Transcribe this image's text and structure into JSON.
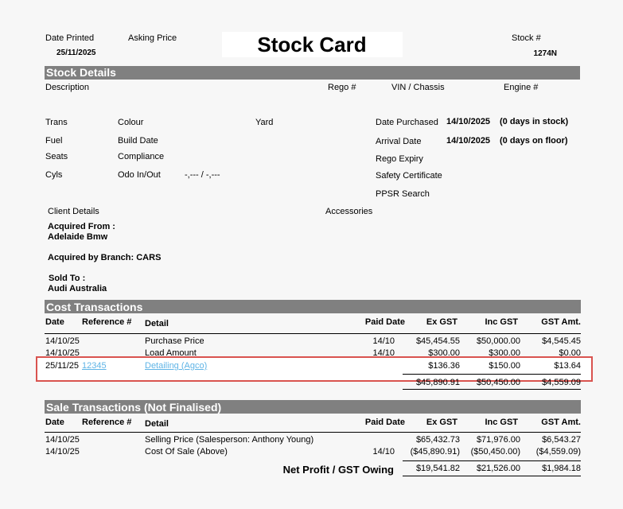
{
  "header": {
    "date_printed_label": "Date Printed",
    "date_printed": "25/11/2025",
    "asking_price_label": "Asking Price",
    "title": "Stock Card",
    "stock_no_label": "Stock #",
    "stock_no": "1274N"
  },
  "stock_details": {
    "heading": "Stock Details",
    "description": "Description",
    "rego": "Rego #",
    "vin": "VIN / Chassis",
    "engine": "Engine #",
    "trans": "Trans",
    "colour": "Colour",
    "yard": "Yard",
    "date_purchased_label": "Date Purchased",
    "date_purchased": "14/10/2025",
    "days_in_stock": "(0 days in stock)",
    "fuel": "Fuel",
    "build_date": "Build Date",
    "arrival_date_label": "Arrival Date",
    "arrival_date": "14/10/2025",
    "days_on_floor": "(0 days on floor)",
    "seats": "Seats",
    "compliance": "Compliance",
    "rego_expiry": "Rego Expiry",
    "cyls": "Cyls",
    "odo": "Odo In/Out",
    "odo_value": "-,--- / -,---",
    "safety": "Safety Certificate",
    "ppsr": "PPSR Search",
    "client_details": "Client Details",
    "accessories": "Accessories",
    "acquired_from_label": "Acquired From :",
    "acquired_from": "Adelaide Bmw",
    "acquired_branch": "Acquired by Branch: CARS",
    "sold_to_label": "Sold To :",
    "sold_to": "Audi Australia"
  },
  "cost_transactions": {
    "heading": "Cost Transactions",
    "columns": [
      "Date",
      "Reference #",
      "Detail",
      "Paid Date",
      "Ex GST",
      "Inc GST",
      "GST Amt."
    ],
    "rows": [
      {
        "date": "14/10/25",
        "detail": "Purchase Price",
        "paid_date": "14/10",
        "ex_gst": "$45,454.55",
        "inc_gst": "$50,000.00",
        "gst_amt": "$4,545.45"
      },
      {
        "date": "14/10/25",
        "detail": "Load Amount",
        "paid_date": "14/10",
        "ex_gst": "$300.00",
        "inc_gst": "$300.00",
        "gst_amt": "$0.00"
      },
      {
        "date": "25/11/25",
        "reference": "12345",
        "detail": "Detailing (Agco)",
        "ex_gst": "$136.36",
        "inc_gst": "$150.00",
        "gst_amt": "$13.64"
      }
    ],
    "totals": {
      "ex_gst": "$45,890.91",
      "inc_gst": "$50,450.00",
      "gst_amt": "$4,559.09"
    }
  },
  "sale_transactions": {
    "heading": "Sale Transactions (Not Finalised)",
    "columns": [
      "Date",
      "Reference #",
      "Detail",
      "Paid Date",
      "Ex GST",
      "Inc GST",
      "GST Amt."
    ],
    "rows": [
      {
        "date": "14/10/25",
        "detail": "Selling Price (Salesperson: Anthony Young)",
        "ex_gst": "$65,432.73",
        "inc_gst": "$71,976.00",
        "gst_amt": "$6,543.27"
      },
      {
        "date": "14/10/25",
        "detail": "Cost Of Sale (Above)",
        "paid_date": "14/10",
        "ex_gst": "($45,890.91)",
        "inc_gst": "($50,450.00)",
        "gst_amt": "($4,559.09)"
      }
    ],
    "totals_label": "Net Profit / GST Owing",
    "totals": {
      "ex_gst": "$19,541.82",
      "inc_gst": "$21,526.00",
      "gst_amt": "$1,984.18"
    }
  }
}
